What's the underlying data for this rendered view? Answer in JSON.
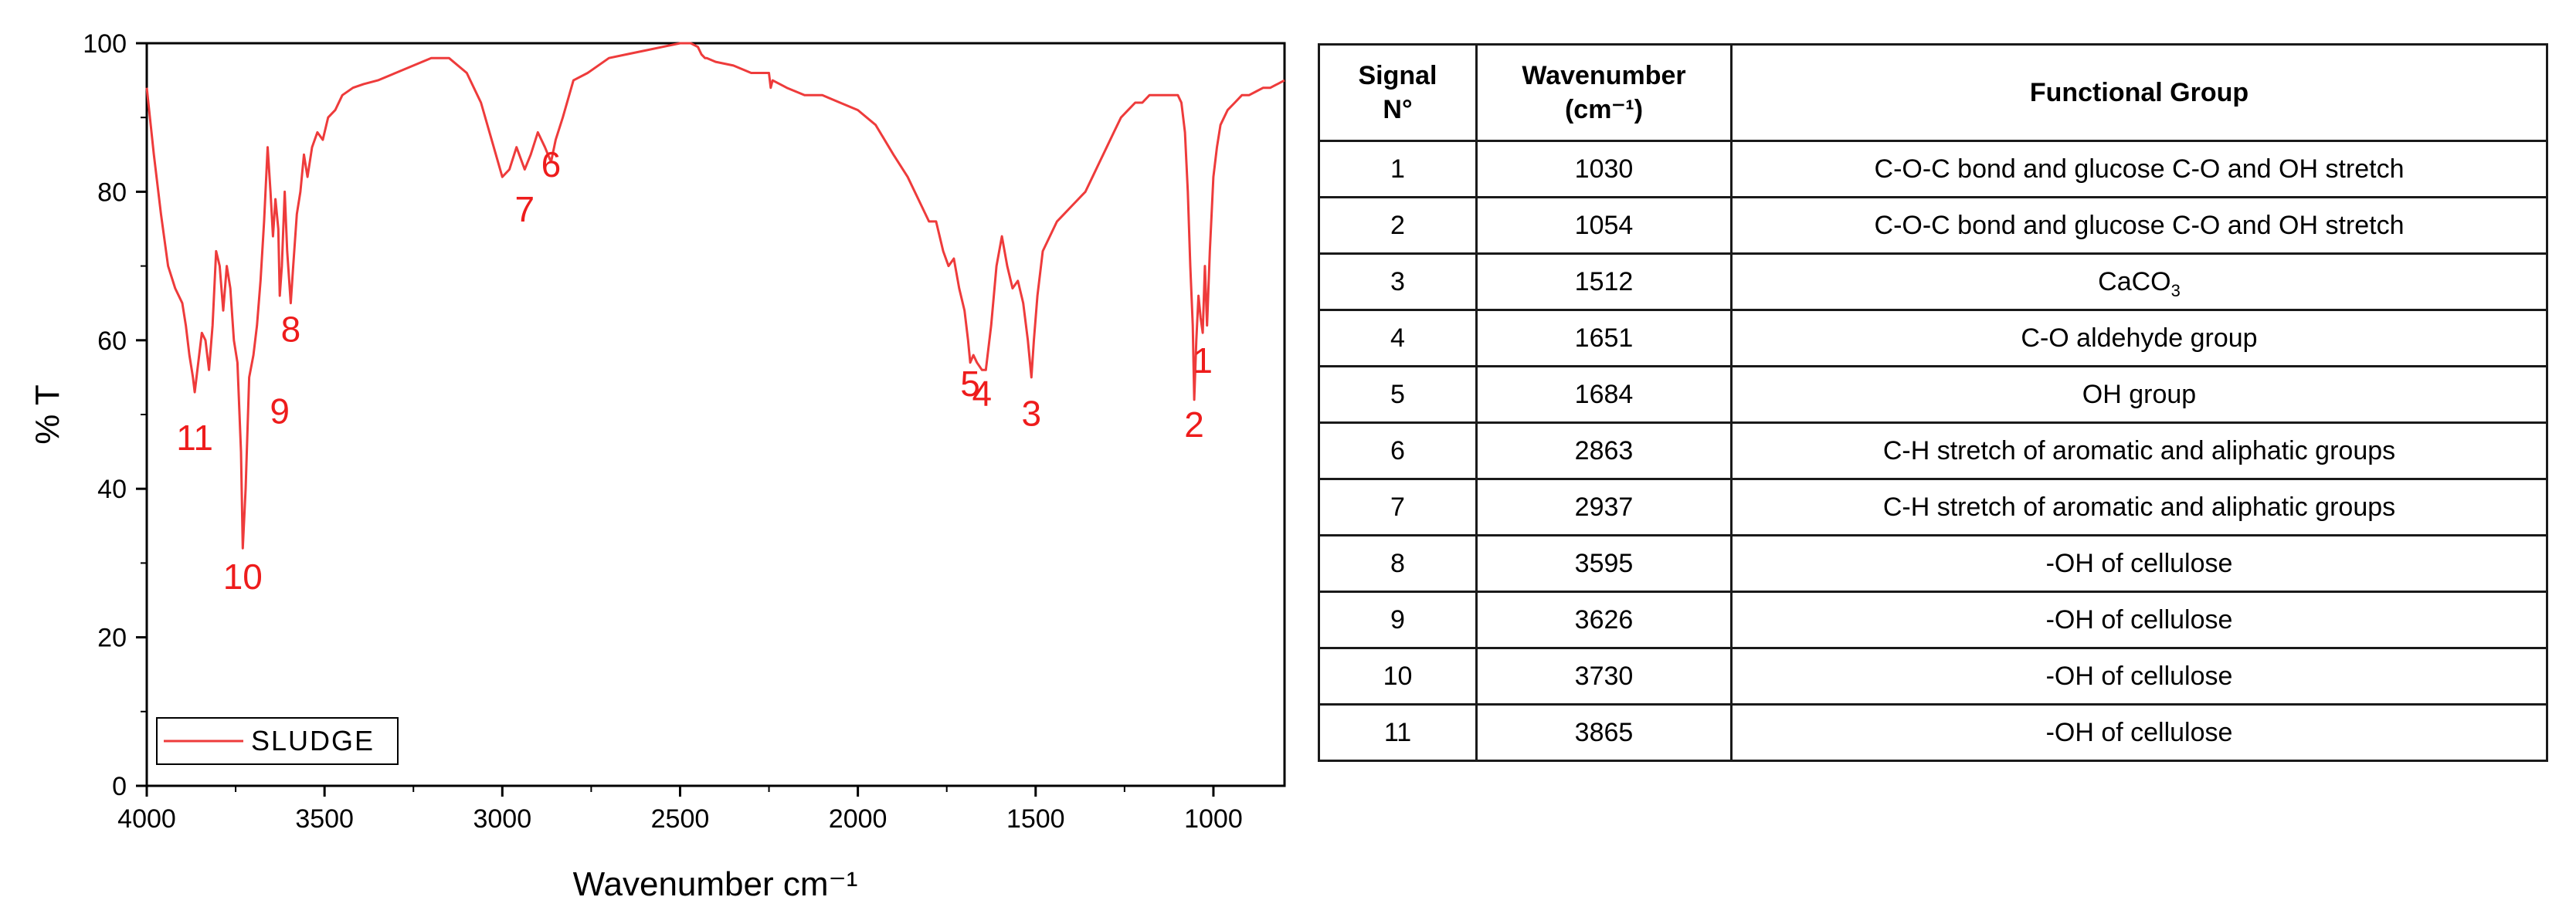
{
  "chart_data": {
    "type": "line",
    "xlabel": "Wavenumber cm⁻¹",
    "ylabel": "% T",
    "xlim": [
      4000,
      800
    ],
    "ylim": [
      0,
      100
    ],
    "x_reversed": true,
    "xticks": [
      4000,
      3500,
      3000,
      2500,
      2000,
      1500,
      1000
    ],
    "yticks": [
      0,
      20,
      40,
      60,
      80,
      100
    ],
    "grid": false,
    "legend": {
      "position": "bottom-left",
      "entries": [
        "SLUDGE"
      ]
    },
    "series": [
      {
        "name": "SLUDGE",
        "color": "#ee3b3b",
        "x": [
          4000,
          3980,
          3960,
          3940,
          3920,
          3900,
          3890,
          3880,
          3870,
          3865,
          3855,
          3845,
          3835,
          3825,
          3815,
          3805,
          3795,
          3785,
          3775,
          3765,
          3755,
          3745,
          3735,
          3730,
          3722,
          3712,
          3700,
          3690,
          3680,
          3670,
          3660,
          3652,
          3645,
          3638,
          3630,
          3626,
          3620,
          3612,
          3605,
          3595,
          3588,
          3578,
          3568,
          3558,
          3548,
          3535,
          3520,
          3505,
          3490,
          3470,
          3450,
          3420,
          3390,
          3350,
          3300,
          3250,
          3200,
          3150,
          3100,
          3060,
          3030,
          3000,
          2980,
          2960,
          2937,
          2920,
          2900,
          2880,
          2863,
          2850,
          2830,
          2800,
          2760,
          2700,
          2650,
          2600,
          2550,
          2500,
          2470,
          2450,
          2440,
          2430,
          2425,
          2400,
          2350,
          2300,
          2250,
          2245,
          2240,
          2200,
          2150,
          2100,
          2050,
          2000,
          1950,
          1900,
          1860,
          1830,
          1800,
          1780,
          1760,
          1745,
          1730,
          1715,
          1700,
          1690,
          1684,
          1675,
          1665,
          1651,
          1640,
          1625,
          1610,
          1595,
          1580,
          1565,
          1550,
          1535,
          1522,
          1512,
          1505,
          1495,
          1480,
          1460,
          1440,
          1420,
          1400,
          1380,
          1360,
          1340,
          1320,
          1300,
          1280,
          1260,
          1240,
          1220,
          1200,
          1180,
          1160,
          1140,
          1120,
          1100,
          1090,
          1080,
          1072,
          1065,
          1058,
          1054,
          1048,
          1042,
          1036,
          1030,
          1024,
          1018,
          1010,
          1000,
          990,
          980,
          970,
          960,
          940,
          920,
          900,
          880,
          860,
          840,
          820,
          800
        ],
        "y": [
          94,
          85,
          77,
          70,
          67,
          65,
          62,
          58,
          55,
          53,
          57,
          61,
          60,
          56,
          62,
          72,
          70,
          64,
          70,
          67,
          60,
          57,
          45,
          32,
          40,
          55,
          58,
          62,
          68,
          76,
          86,
          80,
          74,
          79,
          75,
          66,
          70,
          80,
          72,
          65,
          70,
          77,
          80,
          85,
          82,
          86,
          88,
          87,
          90,
          91,
          93,
          94,
          94.5,
          95,
          96,
          97,
          98,
          98,
          96,
          92,
          87,
          82,
          83,
          86,
          83,
          85,
          88,
          86,
          84,
          87,
          90,
          95,
          96,
          98,
          98.5,
          99,
          99.5,
          100,
          100,
          99.5,
          98.5,
          98,
          98,
          97.5,
          97,
          96,
          96,
          94,
          95,
          94,
          93,
          93,
          92,
          91,
          89,
          85,
          82,
          79,
          76,
          76,
          72,
          70,
          71,
          67,
          64,
          60,
          57,
          58,
          57,
          56,
          56,
          62,
          70,
          74,
          70,
          67,
          68,
          65,
          60,
          55,
          60,
          66,
          72,
          74,
          76,
          77,
          78,
          79,
          80,
          82,
          84,
          86,
          88,
          90,
          91,
          92,
          92,
          93,
          93,
          93,
          93,
          93,
          92,
          88,
          80,
          70,
          62,
          52,
          60,
          66,
          63,
          61,
          70,
          62,
          72,
          82,
          86,
          89,
          90,
          91,
          92,
          93,
          93,
          93.5,
          94,
          94,
          94.5,
          95
        ]
      }
    ],
    "annotations": [
      {
        "label": "1",
        "x": 1030,
        "y": 55.6
      },
      {
        "label": "2",
        "x": 1054,
        "y": 47
      },
      {
        "label": "3",
        "x": 1512,
        "y": 48.5
      },
      {
        "label": "4",
        "x": 1651,
        "y": 51.2
      },
      {
        "label": "5",
        "x": 1684,
        "y": 52.5
      },
      {
        "label": "6",
        "x": 2863,
        "y": 82
      },
      {
        "label": "7",
        "x": 2937,
        "y": 76
      },
      {
        "label": "8",
        "x": 3595,
        "y": 59.8
      },
      {
        "label": "9",
        "x": 3626,
        "y": 48.8
      },
      {
        "label": "10",
        "x": 3730,
        "y": 26.5
      },
      {
        "label": "11",
        "x": 3865,
        "y": 45.2
      }
    ]
  },
  "table": {
    "header": {
      "signal_line1": "Signal",
      "signal_line2": "N°",
      "wave_line1": "Wavenumber",
      "wave_line2": "(cm⁻¹)",
      "group": "Functional Group"
    },
    "rows": [
      {
        "signal": "1",
        "wavenumber": "1030",
        "group": "C-O-C bond and glucose C-O and OH stretch"
      },
      {
        "signal": "2",
        "wavenumber": "1054",
        "group": "C-O-C bond and glucose C-O and OH stretch"
      },
      {
        "signal": "3",
        "wavenumber": "1512",
        "group": "CaCO",
        "group_sub": "3"
      },
      {
        "signal": "4",
        "wavenumber": "1651",
        "group": "C-O aldehyde group"
      },
      {
        "signal": "5",
        "wavenumber": "1684",
        "group": "OH group"
      },
      {
        "signal": "6",
        "wavenumber": "2863",
        "group": "C-H stretch of aromatic and aliphatic groups"
      },
      {
        "signal": "7",
        "wavenumber": "2937",
        "group": "C-H stretch of aromatic and aliphatic groups"
      },
      {
        "signal": "8",
        "wavenumber": "3595",
        "group": "-OH of cellulose"
      },
      {
        "signal": "9",
        "wavenumber": "3626",
        "group": "-OH of cellulose"
      },
      {
        "signal": "10",
        "wavenumber": "3730",
        "group": "-OH of cellulose"
      },
      {
        "signal": "11",
        "wavenumber": "3865",
        "group": "-OH of cellulose"
      }
    ]
  }
}
